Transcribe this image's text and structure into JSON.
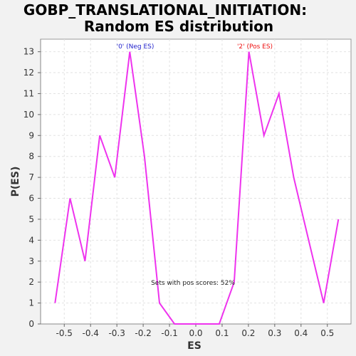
{
  "chart_data": {
    "type": "line",
    "title_line1": "GOBP_TRANSLATIONAL_INITIATION:",
    "title_line2": "Random ES distribution",
    "xlabel": "ES",
    "ylabel": "P(ES)",
    "xlim": [
      -0.59,
      0.59
    ],
    "ylim": [
      0,
      13.6
    ],
    "xticks": [
      -0.5,
      -0.4,
      -0.3,
      -0.2,
      -0.1,
      0.0,
      0.1,
      0.2,
      0.3,
      0.4,
      0.5
    ],
    "xtick_labels": [
      "-0.5",
      "-0.4",
      "-0.3",
      "-0.2",
      "-0.1",
      "0.0",
      "0.1",
      "0.2",
      "0.3",
      "0.4",
      "0.5"
    ],
    "yticks": [
      0,
      1,
      2,
      3,
      4,
      5,
      6,
      7,
      8,
      9,
      10,
      11,
      12,
      13
    ],
    "ytick_labels": [
      "0",
      "1",
      "2",
      "3",
      "4",
      "5",
      "6",
      "7",
      "8",
      "9",
      "10",
      "11",
      "12",
      "13"
    ],
    "grid": true,
    "series": [
      {
        "color": "#ee33ee",
        "x": [
          -0.535,
          -0.478,
          -0.421,
          -0.365,
          -0.308,
          -0.251,
          -0.195,
          -0.138,
          -0.081,
          -0.025,
          0.032,
          0.089,
          0.146,
          0.202,
          0.259,
          0.316,
          0.372,
          0.429,
          0.486,
          0.542
        ],
        "y": [
          1,
          6,
          3,
          9,
          7,
          13,
          8,
          1,
          0,
          0,
          0,
          0,
          2,
          13,
          9,
          11,
          7,
          4,
          1,
          5
        ]
      }
    ],
    "annotations": {
      "neg_label": "'0' (Neg ES)",
      "pos_label": "'2' (Pos ES)",
      "sets_label": "Sets with pos scores: 52%"
    },
    "colors": {
      "neg": "#2222cc",
      "pos": "#ee1111",
      "line": "#ee33ee",
      "grid": "#e2e2e2",
      "plot_bg": "#ffffff",
      "page_bg": "#f2f2f2"
    }
  }
}
